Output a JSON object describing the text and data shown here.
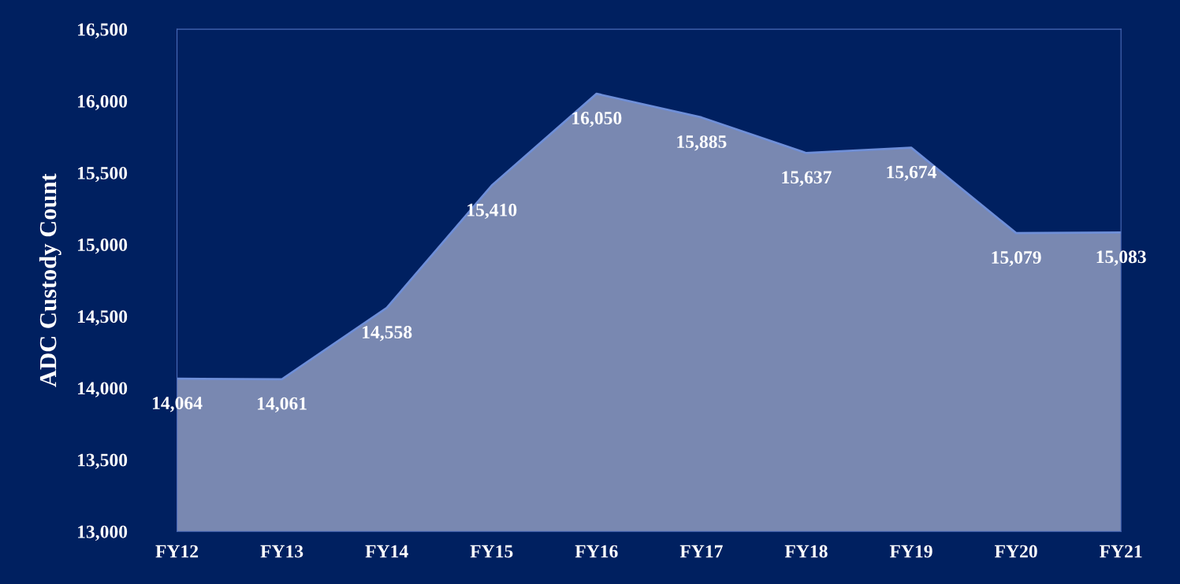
{
  "chart_data": {
    "type": "area",
    "ylabel": "ADC Custody Count",
    "categories": [
      "FY12",
      "FY13",
      "FY14",
      "FY15",
      "FY16",
      "FY17",
      "FY18",
      "FY19",
      "FY20",
      "FY21"
    ],
    "series": [
      {
        "color": "#8e9bc0",
        "values": [
          14064,
          14061,
          14558,
          15410,
          16050,
          15885,
          15637,
          15674,
          15079,
          15083
        ],
        "value_labels": [
          "14,064",
          "14,061",
          "14,558",
          "15,410",
          "16,050",
          "15,885",
          "15,637",
          "15,674",
          "15,079",
          "15,083"
        ]
      }
    ],
    "ylim": [
      13000,
      16500
    ],
    "yticks": [
      {
        "value": 13000,
        "label": "13,000"
      },
      {
        "value": 13500,
        "label": "13,500"
      },
      {
        "value": 14000,
        "label": "14,000"
      },
      {
        "value": 14500,
        "label": "14,500"
      },
      {
        "value": 15000,
        "label": "15,000"
      },
      {
        "value": 15500,
        "label": "15,500"
      },
      {
        "value": 16000,
        "label": "16,000"
      },
      {
        "value": 16500,
        "label": "16,500"
      }
    ],
    "grid": false,
    "legend": false
  }
}
